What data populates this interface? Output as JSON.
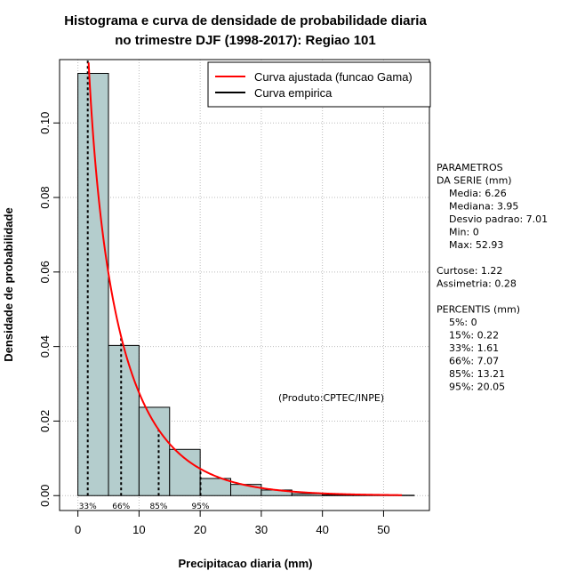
{
  "chart_data": {
    "type": "bar",
    "title": "Histograma e curva de densidade de probabilidade diaria",
    "subtitle": "no trimestre DJF (1998-2017): Regiao 101",
    "xlabel": "Precipitacao diaria (mm)",
    "ylabel": "Densidade de probabilidade",
    "xlim": [
      -3,
      57.5
    ],
    "ylim": [
      -0.004,
      0.117
    ],
    "x_ticks": [
      0,
      10,
      20,
      30,
      40,
      50
    ],
    "x_tick_labels": [
      "0",
      "10",
      "20",
      "30",
      "40",
      "50"
    ],
    "y_ticks": [
      0.0,
      0.02,
      0.04,
      0.06,
      0.08,
      0.1
    ],
    "y_tick_labels": [
      "0.00",
      "0.02",
      "0.04",
      "0.06",
      "0.08",
      "0.10"
    ],
    "grid": true,
    "bins": [
      {
        "from": 0,
        "to": 5,
        "density": 0.1133
      },
      {
        "from": 5,
        "to": 10,
        "density": 0.0403
      },
      {
        "from": 10,
        "to": 15,
        "density": 0.0237
      },
      {
        "from": 15,
        "to": 20,
        "density": 0.0124
      },
      {
        "from": 20,
        "to": 25,
        "density": 0.0046
      },
      {
        "from": 25,
        "to": 30,
        "density": 0.003
      },
      {
        "from": 30,
        "to": 35,
        "density": 0.0015
      },
      {
        "from": 35,
        "to": 40,
        "density": 0.0005
      },
      {
        "from": 40,
        "to": 45,
        "density": 0.0002
      },
      {
        "from": 45,
        "to": 50,
        "density": 0.0001
      },
      {
        "from": 50,
        "to": 55,
        "density": 0.0001
      }
    ],
    "fitted_curve": {
      "name": "Curva ajustada (funcao Gama)",
      "color": "#ff0000",
      "shape": 0.72,
      "scale": 8.7,
      "x_start": 0.3,
      "x_end": 53
    },
    "empirical_curve": {
      "name": "Curva empirica",
      "color": "#000000"
    },
    "percentile_markers": [
      {
        "label": "33%",
        "x": 1.61
      },
      {
        "label": "66%",
        "x": 7.07
      },
      {
        "label": "85%",
        "x": 13.21
      },
      {
        "label": "95%",
        "x": 20.05
      }
    ],
    "legend": {
      "position": "top-right"
    },
    "annotation": "(Produto:CPTEC/INPE)",
    "bar_color": "#b4cdcd",
    "line_color": "#000000"
  },
  "stats": {
    "lines": [
      "PARAMETROS",
      "DA SERIE (mm)",
      "  Media: 6.26",
      "  Mediana: 3.95",
      "  Desvio padrao: 7.01",
      "  Min: 0",
      "  Max: 52.93",
      "",
      "Curtose: 1.22",
      "Assimetria: 0.28",
      "",
      "PERCENTIS (mm)",
      "  5%: 0",
      "  15%: 0.22",
      "  33%: 1.61",
      "  66%: 7.07",
      "  85%: 13.21",
      "  95%: 20.05"
    ]
  }
}
